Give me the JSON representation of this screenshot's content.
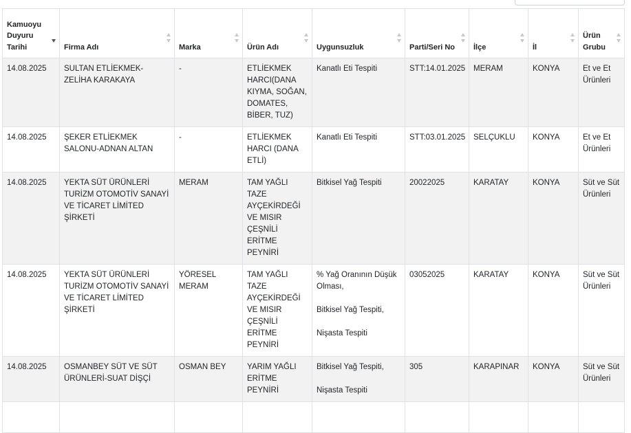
{
  "table": {
    "columns": [
      "Kamuoyu Duyuru Tarihi",
      "Firma Adı",
      "Marka",
      "Ürün Adı",
      "Uygunsuzluk",
      "Parti/Seri No",
      "İlçe",
      "İl",
      "Ürün Grubu"
    ],
    "rows": [
      {
        "date": "14.08.2025",
        "firm": "SULTAN ETLİEKMEK-ZELİHA KARAKAYA",
        "brand": "-",
        "product": "ETLİEKMEK HARCI(DANA KIYMA, SOĞAN, DOMATES, BİBER, TUZ)",
        "issues": [
          "Kanatlı Eti Tespiti"
        ],
        "batch": "STT:14.01.2025",
        "district": "MERAM",
        "province": "KONYA",
        "group": "Et ve Et Ürünleri"
      },
      {
        "date": "14.08.2025",
        "firm": "ŞEKER ETLİEKMEK SALONU-ADNAN ALTAN",
        "brand": "-",
        "product": "ETLİEKMEK HARCI (DANA ETLİ)",
        "issues": [
          "Kanatlı Eti Tespiti"
        ],
        "batch": "STT:03.01.2025",
        "district": "SELÇUKLU",
        "province": "KONYA",
        "group": "Et ve Et Ürünleri"
      },
      {
        "date": "14.08.2025",
        "firm": "YEKTA SÜT ÜRÜNLERİ TURİZM OTOMOTİV SANAYİ VE TİCARET LİMİTED ŞİRKETİ",
        "brand": "MERAM",
        "product": "TAM YAĞLI TAZE AYÇEKİRDEĞİ VE MISIR ÇEŞNİLİ ERİTME PEYNİRİ",
        "issues": [
          "Bitkisel Yağ Tespiti"
        ],
        "batch": "20022025",
        "district": "KARATAY",
        "province": "KONYA",
        "group": "Süt ve Süt Ürünleri"
      },
      {
        "date": "14.08.2025",
        "firm": "YEKTA SÜT ÜRÜNLERİ TURİZM OTOMOTİV SANAYİ VE TİCARET LİMİTED ŞİRKETİ",
        "brand": "YÖRESEL MERAM",
        "product": "TAM YAĞLI TAZE AYÇEKİRDEĞİ VE MISIR ÇEŞNİLİ ERİTME PEYNİRİ",
        "issues": [
          "% Yağ Oranının Düşük Olması,",
          "Bitkisel Yağ Tespiti,",
          "Nişasta Tespiti"
        ],
        "batch": "03052025",
        "district": "KARATAY",
        "province": "KONYA",
        "group": "Süt ve Süt Ürünleri"
      },
      {
        "date": "14.08.2025",
        "firm": "OSMANBEY SÜT VE SÜT ÜRÜNLERİ-SUAT DİŞÇİ",
        "brand": "OSMAN BEY",
        "product": "YARIM YAĞLI ERİTME PEYNİRİ",
        "issues": [
          "Bitkisel Yağ Tespiti,",
          "Nişasta Tespiti"
        ],
        "batch": "305",
        "district": "KARAPINAR",
        "province": "KONYA",
        "group": "Süt ve Süt Ürünleri"
      }
    ]
  }
}
